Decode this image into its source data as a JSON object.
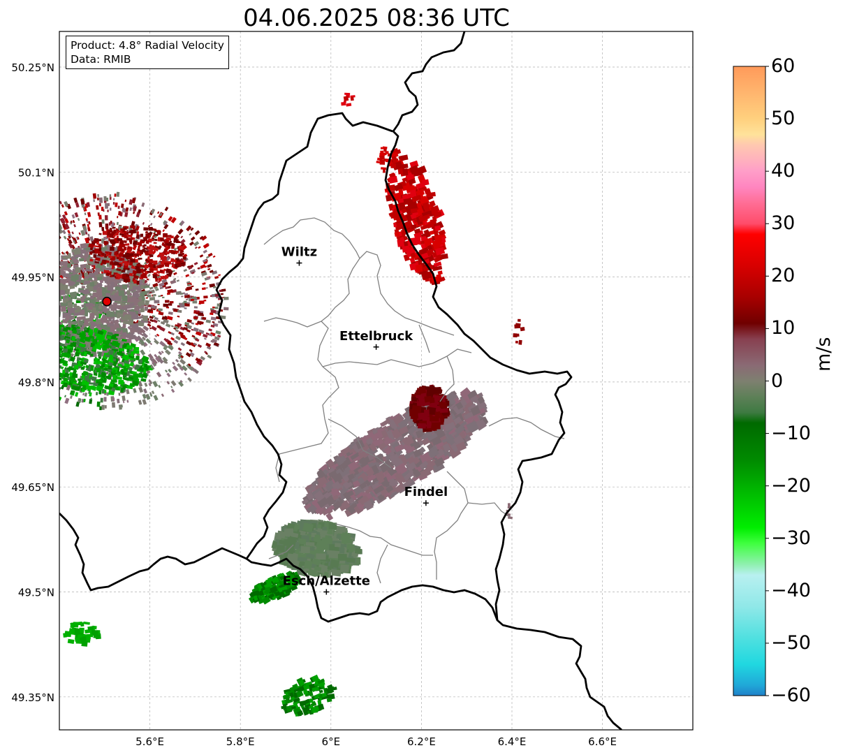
{
  "title": "04.06.2025 08:36 UTC",
  "info_box": {
    "product": "Product: 4.8° Radial Velocity",
    "source": "Data: RMIB"
  },
  "lat_labels": [
    "50.25°N",
    "50.1°N",
    "49.95°N",
    "49.8°N",
    "49.65°N",
    "49.5°N",
    "49.35°N"
  ],
  "lon_labels": [
    "5.6°E",
    "5.8°E",
    "6°E",
    "6.2°E",
    "6.4°E",
    "6.6°E"
  ],
  "cities": [
    {
      "name": "Wiltz",
      "lon": 5.93,
      "lat": 49.97
    },
    {
      "name": "Ettelbruck",
      "lon": 6.1,
      "lat": 49.85
    },
    {
      "name": "Findel",
      "lon": 6.21,
      "lat": 49.627
    },
    {
      "name": "Esch/Alzette",
      "lon": 5.99,
      "lat": 49.5
    }
  ],
  "radar_site": {
    "lon": 5.505,
    "lat": 49.915,
    "color": "#e00000"
  },
  "colorbar": {
    "unit": "m/s",
    "ticks": [
      "60",
      "50",
      "40",
      "30",
      "20",
      "10",
      "0",
      "−10",
      "−20",
      "−30",
      "−40",
      "−50",
      "−60"
    ],
    "stops": [
      {
        "v": 60,
        "c": "#ff9a5a"
      },
      {
        "v": 55,
        "c": "#ffb56e"
      },
      {
        "v": 50,
        "c": "#ffd07e"
      },
      {
        "v": 47,
        "c": "#ffe29a"
      },
      {
        "v": 45,
        "c": "#ffc8b0"
      },
      {
        "v": 42,
        "c": "#ffb0be"
      },
      {
        "v": 40,
        "c": "#ff9ec8"
      },
      {
        "v": 37,
        "c": "#ff86c0"
      },
      {
        "v": 34,
        "c": "#ff6e96"
      },
      {
        "v": 30,
        "c": "#ff4c6a"
      },
      {
        "v": 28,
        "c": "#ff0000"
      },
      {
        "v": 22,
        "c": "#d80000"
      },
      {
        "v": 16,
        "c": "#a80000"
      },
      {
        "v": 11,
        "c": "#700000"
      },
      {
        "v": 8,
        "c": "#884050"
      },
      {
        "v": 3,
        "c": "#8a6a74"
      },
      {
        "v": 0,
        "c": "#7e8070"
      },
      {
        "v": -3,
        "c": "#5e8058"
      },
      {
        "v": -6,
        "c": "#3e7a42"
      },
      {
        "v": -8,
        "c": "#006a00"
      },
      {
        "v": -15,
        "c": "#008a00"
      },
      {
        "v": -22,
        "c": "#00c000"
      },
      {
        "v": -28,
        "c": "#00ee00"
      },
      {
        "v": -31,
        "c": "#40ff40"
      },
      {
        "v": -35,
        "c": "#90f0b0"
      },
      {
        "v": -37,
        "c": "#b8f0f0"
      },
      {
        "v": -43,
        "c": "#90e8e8"
      },
      {
        "v": -49,
        "c": "#50e0e0"
      },
      {
        "v": -54,
        "c": "#20d8e0"
      },
      {
        "v": -58,
        "c": "#20a8d8"
      },
      {
        "v": -60,
        "c": "#2080c8"
      }
    ]
  },
  "map_extent": {
    "lon_min": 5.4,
    "lon_max": 6.8,
    "lat_min": 49.3,
    "lat_max": 50.3
  }
}
